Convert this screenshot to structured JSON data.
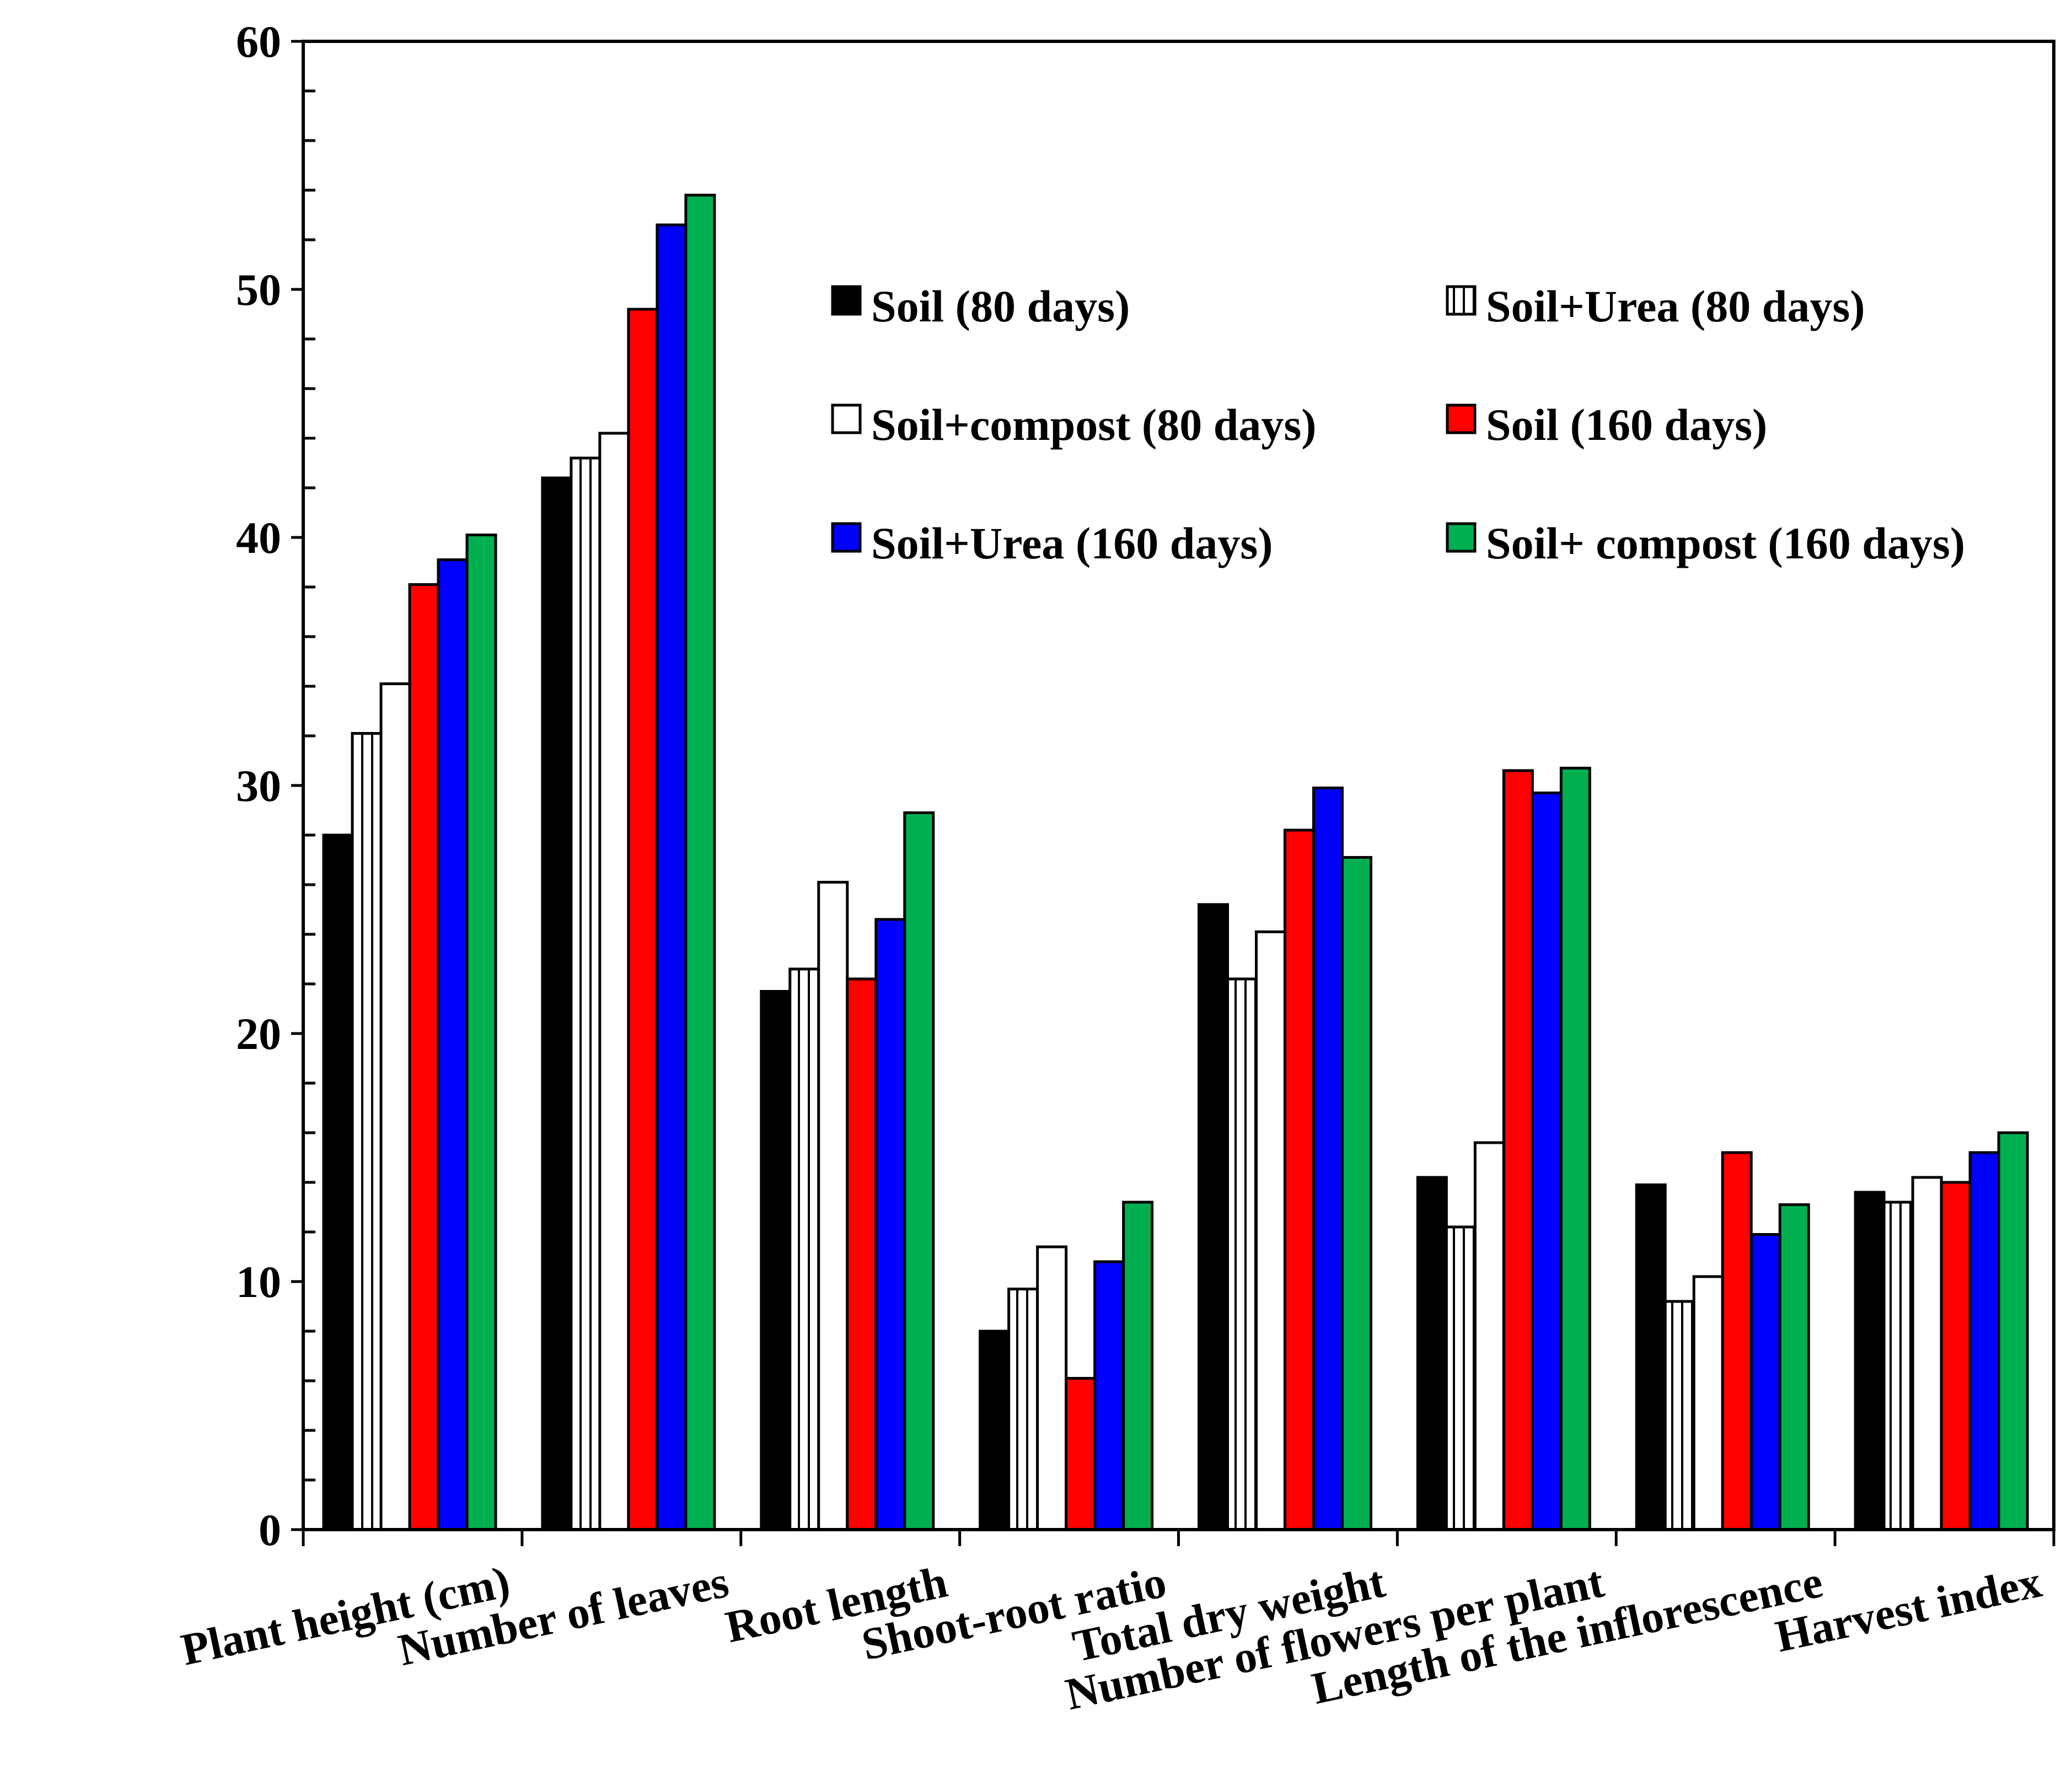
{
  "chart_data": {
    "type": "bar",
    "title": "",
    "xlabel": "",
    "ylabel": "",
    "ylim": [
      0,
      60
    ],
    "yticks": [
      "0",
      "10",
      "20",
      "30",
      "40",
      "50",
      "60"
    ],
    "grid": false,
    "legend_position": "top-right",
    "categories": [
      "Plant height (cm)",
      "Number of leaves",
      "Root length",
      "Shoot-root ratio",
      "Total dry weight",
      "Number of flowers per plant",
      "Length of the inflorescence",
      "Harvest index"
    ],
    "series": [
      {
        "name": "Soil (80 days)",
        "color": "#000000",
        "pattern": "solid",
        "values": [
          28.0,
          42.4,
          21.7,
          8.0,
          25.2,
          14.2,
          13.9,
          13.6
        ]
      },
      {
        "name": "Soil+Urea (80 days)",
        "color": "#ffffff",
        "pattern": "vertical-lines",
        "values": [
          32.1,
          43.2,
          22.6,
          9.7,
          22.2,
          12.2,
          9.2,
          13.2
        ]
      },
      {
        "name": "Soil+compost (80 days)",
        "color": "#ffffff",
        "pattern": "solid",
        "values": [
          34.1,
          44.2,
          26.1,
          11.4,
          24.1,
          15.6,
          10.2,
          14.2
        ]
      },
      {
        "name": "Soil (160 days)",
        "color": "#ff0000",
        "pattern": "solid",
        "values": [
          38.1,
          49.2,
          22.2,
          6.1,
          28.2,
          30.6,
          15.2,
          14.0
        ]
      },
      {
        "name": "Soil+Urea (160 days)",
        "color": "#0000ff",
        "pattern": "solid",
        "values": [
          39.1,
          52.6,
          24.6,
          10.8,
          29.9,
          29.7,
          11.9,
          15.2
        ]
      },
      {
        "name": "Soil+ compost (160 days)",
        "color": "#00b050",
        "pattern": "solid",
        "values": [
          40.1,
          53.8,
          28.9,
          13.2,
          27.1,
          30.7,
          13.1,
          16.0
        ]
      }
    ]
  }
}
